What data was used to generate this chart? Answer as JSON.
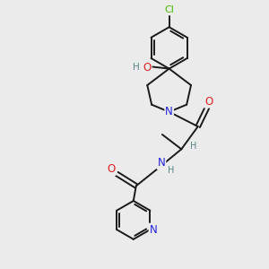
{
  "bg_color": "#ebebeb",
  "bond_color": "#1a1a1a",
  "bond_width": 1.4,
  "atom_colors": {
    "N": "#2222dd",
    "O": "#dd2222",
    "Cl": "#44bb00",
    "H": "#558888",
    "C": "#1a1a1a"
  },
  "font_size": 7.5,
  "font_size_cl": 8.0,
  "font_size_atom": 8.5
}
